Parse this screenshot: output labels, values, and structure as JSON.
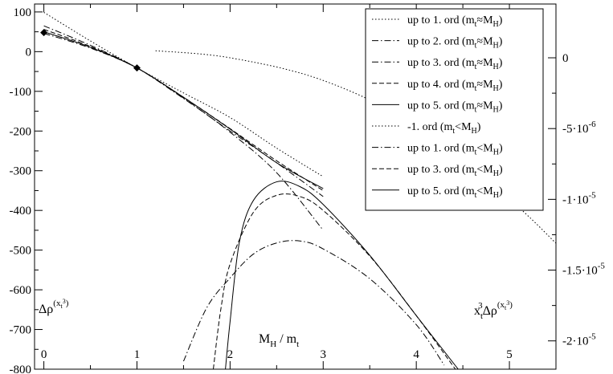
{
  "chart_data": {
    "type": "line",
    "xlabel": {
      "main": "M",
      "sub": "H",
      "rest": " / m",
      "sub2": "t"
    },
    "ylabel_left": {
      "main": "Δρ",
      "sup": "(x",
      "supsub": "t",
      "supsup": "3",
      "supclose": ")"
    },
    "ylabel_right": {
      "pre": "x",
      "presub": "t",
      "presup": "3",
      "main": "Δρ",
      "sup": "(x",
      "supsub": "t",
      "supsup": "3",
      "supclose": ")"
    },
    "xlim": [
      -0.1,
      5.5
    ],
    "ylim": [
      -800,
      120
    ],
    "xticks": [
      "0",
      "1",
      "2",
      "3",
      "4",
      "5"
    ],
    "xtick_values": [
      0,
      1,
      2,
      3,
      4,
      5
    ],
    "yticks_left": [
      "100",
      "0",
      "-100",
      "-200",
      "-300",
      "-400",
      "-500",
      "-600",
      "-700",
      "-800"
    ],
    "ytick_values_left": [
      100,
      0,
      -100,
      -200,
      -300,
      -400,
      -500,
      -600,
      -700,
      -800
    ],
    "right_axis": {
      "ylim": [
        -2.2e-05,
        3.8e-06
      ],
      "tick_values": [
        0,
        -5e-06,
        -1e-05,
        -1.5e-05,
        -2e-05
      ],
      "ticks": [
        {
          "mant": "0",
          "exp": ""
        },
        {
          "mant": "-5·10",
          "exp": "-6"
        },
        {
          "mant": "-1·10",
          "exp": "-5"
        },
        {
          "mant": "-1.5·10",
          "exp": "-5"
        },
        {
          "mant": "-2·10",
          "exp": "-5"
        }
      ]
    },
    "markers": [
      {
        "x": 0,
        "y": 48
      },
      {
        "x": 1,
        "y": -41
      }
    ],
    "series": [
      {
        "axis": "left",
        "style": "dotted",
        "legend": {
          "text": "up to 1. ord (m",
          "s1": "t",
          "mid": "≈M",
          "s2": "H",
          "end": ")"
        },
        "x": [
          0,
          0.5,
          1,
          1.5,
          2,
          2.5,
          3
        ],
        "y": [
          99,
          27,
          -41,
          -104,
          -166,
          -243,
          -315
        ]
      },
      {
        "axis": "left",
        "style": "dashdot",
        "legend": {
          "text": "up to 2. ord (m",
          "s1": "t",
          "mid": "≈M",
          "s2": "H",
          "end": ")"
        },
        "x": [
          0,
          0.5,
          1,
          1.5,
          2,
          2.5,
          3
        ],
        "y": [
          65,
          16,
          -41,
          -118,
          -200,
          -280,
          -365
        ]
      },
      {
        "axis": "left",
        "style": "dashdot",
        "legend": {
          "text": "up to 3. ord (m",
          "s1": "t",
          "mid": "≈M",
          "s2": "H",
          "end": ")"
        },
        "x": [
          0,
          0.5,
          1,
          1.5,
          2,
          2.5,
          3
        ],
        "y": [
          46,
          9,
          -41,
          -117,
          -203,
          -305,
          -450
        ]
      },
      {
        "axis": "left",
        "style": "dashed",
        "legend": {
          "text": "up to 4. ord (m",
          "s1": "t",
          "mid": "≈M",
          "s2": "H",
          "end": ")"
        },
        "x": [
          0,
          0.5,
          1,
          1.5,
          2,
          2.5,
          3
        ],
        "y": [
          56,
          13,
          -41,
          -115,
          -194,
          -275,
          -350
        ]
      },
      {
        "axis": "left",
        "style": "solid",
        "legend": {
          "text": "up to 5. ord (m",
          "s1": "t",
          "mid": "≈M",
          "s2": "H",
          "end": ")"
        },
        "x": [
          0,
          0.5,
          1,
          1.5,
          2,
          2.5,
          3
        ],
        "y": [
          50,
          11,
          -41,
          -115,
          -195,
          -280,
          -345
        ]
      },
      {
        "axis": "right",
        "style": "dotted",
        "legend": {
          "text": "-1. ord (m",
          "s1": "t",
          "mid": "<M",
          "s2": "H",
          "end": ")"
        },
        "x": [
          1.2,
          2,
          3,
          4,
          5,
          5.5
        ],
        "y": [
          5e-07,
          0,
          -1.6e-06,
          -4.8e-06,
          -1e-05,
          -1.31e-05
        ]
      },
      {
        "axis": "left",
        "style": "dashdot",
        "legend": {
          "text": "up to 1. ord (m",
          "s1": "t",
          "mid": "<M",
          "s2": "H",
          "end": ")"
        },
        "x": [
          1.5,
          1.75,
          2,
          2.25,
          2.5,
          2.75,
          3,
          3.5,
          4,
          4.3
        ],
        "y": [
          -780,
          -645,
          -570,
          -510,
          -482,
          -477,
          -497,
          -572,
          -688,
          -790
        ]
      },
      {
        "axis": "left",
        "style": "dashed",
        "legend": {
          "text": "up to 3. ord (m",
          "s1": "t",
          "mid": "<M",
          "s2": "H",
          "end": ")"
        },
        "x": [
          1.82,
          1.9,
          2,
          2.25,
          2.5,
          2.75,
          3,
          3.5,
          4,
          4.42
        ],
        "y": [
          -800,
          -650,
          -535,
          -405,
          -362,
          -365,
          -400,
          -515,
          -665,
          -800
        ]
      },
      {
        "axis": "left",
        "style": "solid",
        "legend": {
          "text": "up to 5. ord (m",
          "s1": "t",
          "mid": "<M",
          "s2": "H",
          "end": ")"
        },
        "x": [
          1.95,
          2,
          2.1,
          2.25,
          2.5,
          2.75,
          3,
          3.5,
          4,
          4.45
        ],
        "y": [
          -800,
          -680,
          -480,
          -375,
          -328,
          -340,
          -385,
          -513,
          -665,
          -800
        ]
      }
    ]
  }
}
